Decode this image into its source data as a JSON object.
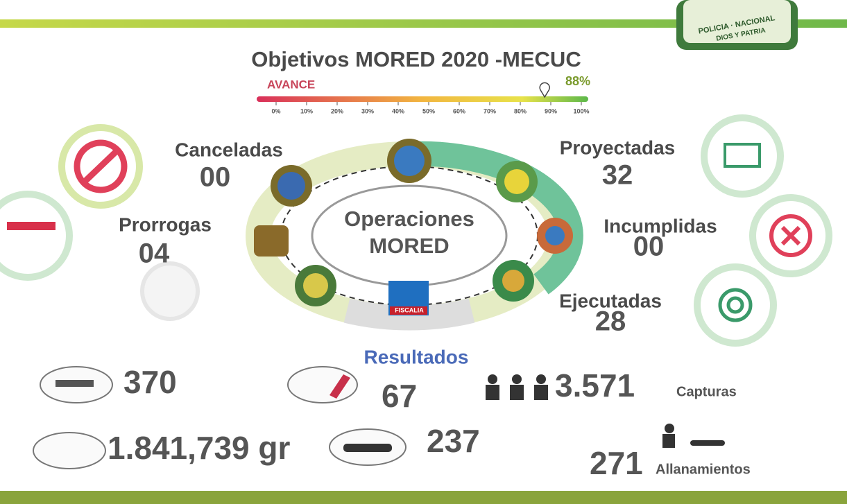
{
  "header": {
    "title": "Objetivos MORED 2020 -MECUC",
    "seal_text": "POLICIA · NACIONAL",
    "seal_motto": "DIOS Y PATRIA"
  },
  "progress": {
    "label": "AVANCE",
    "value": 88,
    "value_label": "88%",
    "ticks": [
      {
        "value": 0,
        "label": "0%"
      },
      {
        "value": 10,
        "label": "10%"
      },
      {
        "value": 20,
        "label": "20%"
      },
      {
        "value": 30,
        "label": "30%"
      },
      {
        "value": 40,
        "label": "40%"
      },
      {
        "value": 50,
        "label": "50%"
      },
      {
        "value": 60,
        "label": "60%"
      },
      {
        "value": 70,
        "label": "70%"
      },
      {
        "value": 80,
        "label": "80%"
      },
      {
        "value": 90,
        "label": "90%"
      },
      {
        "value": 100,
        "label": "100%"
      }
    ]
  },
  "center": {
    "line1": "Operaciones",
    "line2": "MORED",
    "badge_text": "FISCALIA"
  },
  "stats": [
    {
      "label": "Canceladas",
      "value": "00"
    },
    {
      "label": "Proyectadas",
      "value": "32"
    },
    {
      "label": "Prorrogas",
      "value": "04"
    },
    {
      "label": "Incumplidas",
      "value": "00"
    },
    {
      "label": "Ejecutadas",
      "value": "28"
    }
  ],
  "results": {
    "title": "Resultados",
    "items": [
      {
        "value": "370"
      },
      {
        "value": "67"
      },
      {
        "value": "3.571",
        "unit": "Capturas"
      },
      {
        "value": "1.841,739 gr"
      },
      {
        "value": "237"
      },
      {
        "value": "271",
        "unit": "Allanamientos"
      }
    ]
  }
}
